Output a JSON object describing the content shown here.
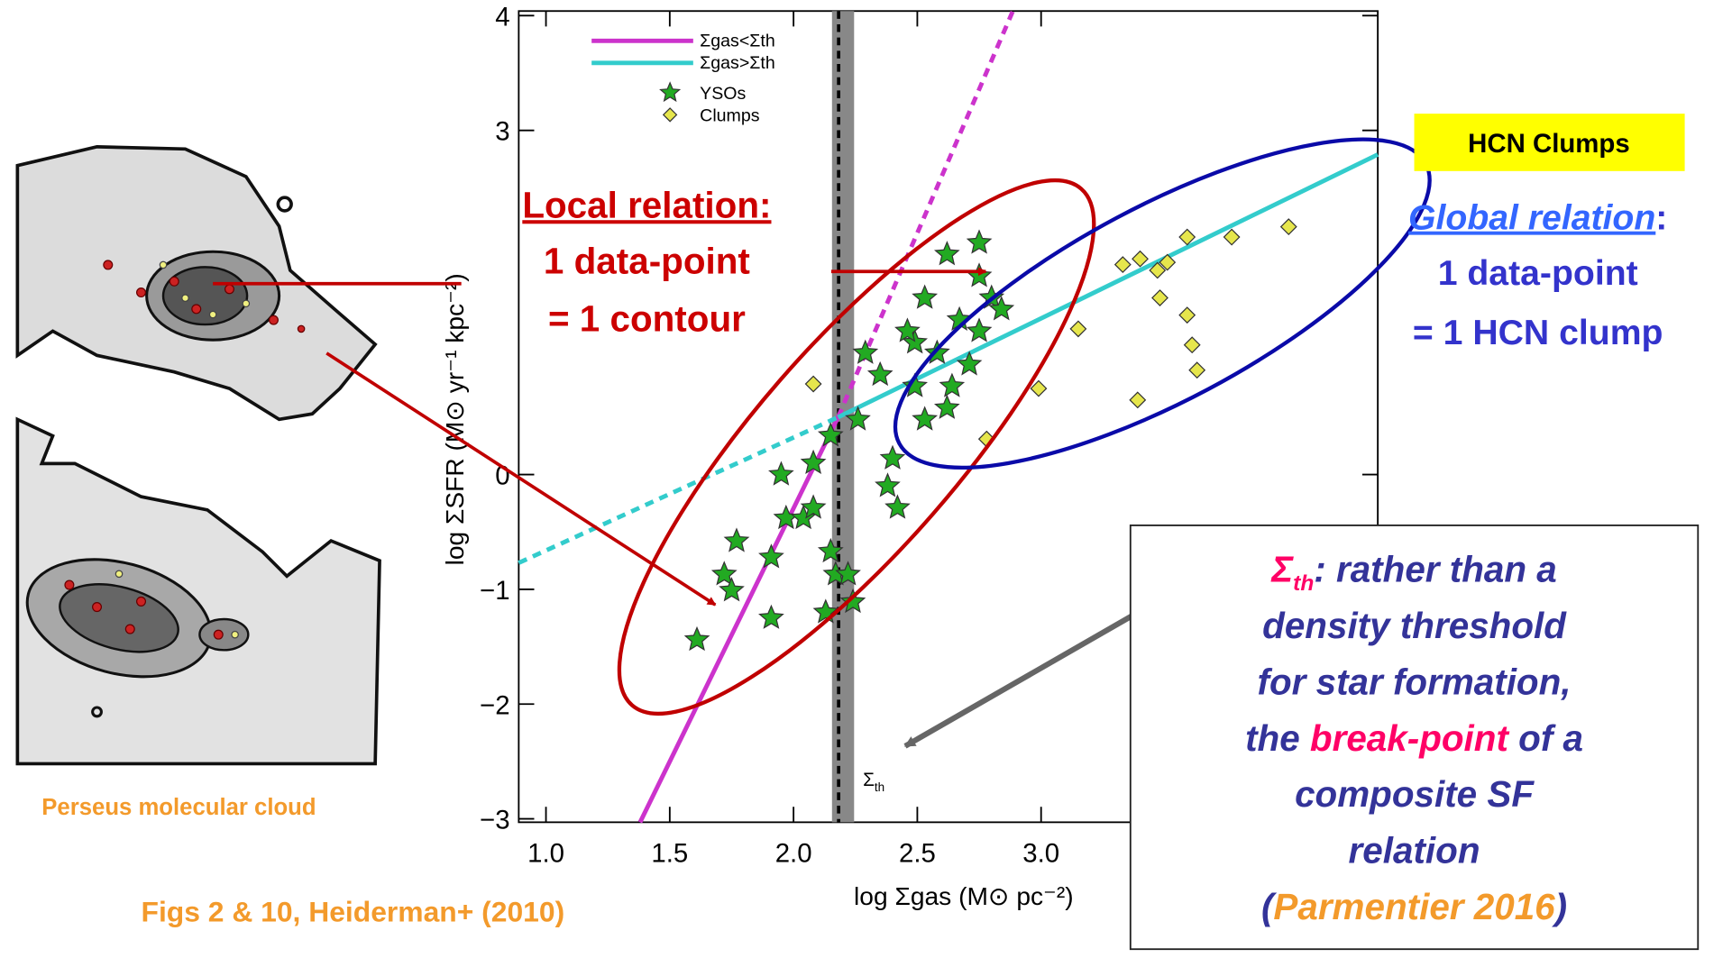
{
  "chart_data": {
    "type": "scatter",
    "x_label": "log Σgas (M⊙ pc⁻²)",
    "y_label": "log ΣSFR (M⊙ yr⁻¹ kpc⁻²)",
    "xlim": [
      0.89,
      4.36
    ],
    "ylim": [
      -3.03,
      4.04
    ],
    "xticks": [
      {
        "value": 1,
        "label": "1.0"
      },
      1.5,
      {
        "value": 2,
        "label": "2.0"
      },
      2.5,
      {
        "value": 3,
        "label": "3.0"
      }
    ],
    "yticks": [
      -3,
      -2,
      -1,
      0,
      3,
      4
    ],
    "threshold": 2.2,
    "threshold_label": {
      "symbol": "Σ",
      "sub": "th"
    },
    "series": [
      {
        "name": "Σgas<Σth",
        "style": "line",
        "color": "#cc33cc",
        "x": [
          1.38,
          2.18
        ],
        "values": [
          -3.03,
          0.5
        ],
        "dashed_x": [
          2.18,
          2.89
        ],
        "dashed_values": [
          0.5,
          4.06
        ]
      },
      {
        "name": "Σgas>Σth",
        "style": "line",
        "color": "#33cccc",
        "x": [
          2.18,
          4.36
        ],
        "values": [
          0.5,
          2.79
        ],
        "dashed_x": [
          0.89,
          2.18
        ],
        "dashed_values": [
          -0.77,
          0.5
        ]
      },
      {
        "name": "YSOs",
        "style": "star",
        "color": "#22aa22",
        "x": [
          1.61,
          1.72,
          1.75,
          1.91,
          1.77,
          1.95,
          1.97,
          2.04,
          2.08,
          2.13,
          2.24,
          2.17,
          2.29,
          2.35,
          2.4,
          2.38,
          2.42,
          2.49,
          2.53,
          2.62,
          2.75,
          2.75,
          2.8,
          2.67,
          2.58,
          2.64,
          2.49,
          2.53,
          2.46,
          2.75,
          2.84,
          2.71,
          2.62,
          2.26,
          2.22,
          2.15,
          2.08,
          2.15,
          1.91
        ],
        "values": [
          -1.44,
          -0.87,
          -1.01,
          -1.25,
          -0.58,
          0,
          -0.38,
          -0.38,
          -0.29,
          -1.2,
          -1.11,
          -0.87,
          1.06,
          0.87,
          0.14,
          -0.1,
          -0.29,
          1.15,
          1.54,
          1.92,
          2.02,
          1.73,
          1.54,
          1.35,
          1.06,
          0.77,
          0.77,
          0.48,
          1.25,
          1.25,
          1.44,
          0.96,
          0.58,
          0.48,
          -0.87,
          -0.67,
          0.1,
          0.34,
          -0.72
        ]
      },
      {
        "name": "Clumps",
        "style": "diamond",
        "color": "#e6e64c",
        "x": [
          2.08,
          2.78,
          2.99,
          3.15,
          3.33,
          3.4,
          3.47,
          3.51,
          3.59,
          3.77,
          4.0,
          3.48,
          3.59,
          3.61,
          3.63,
          3.39
        ],
        "values": [
          0.79,
          0.31,
          0.75,
          1.27,
          1.83,
          1.88,
          1.78,
          1.85,
          2.07,
          2.07,
          2.16,
          1.54,
          1.39,
          1.13,
          0.91,
          0.65
        ]
      }
    ]
  },
  "annotations": {
    "local_title": "Local relation:",
    "local_lines": [
      "1 data-point",
      "= 1 contour"
    ],
    "hcn_box": "HCN Clumps",
    "global_title": "Global relation",
    "global_colon": ":",
    "global_lines": [
      "1 data-point",
      "= 1 HCN clump"
    ],
    "map_caption": "Perseus molecular cloud",
    "source": "Figs 2 & 10, Heiderman+ (2010)"
  },
  "note": {
    "lines": [
      [
        "Σ",
        "th",
        ": rather than a"
      ],
      [
        "density threshold"
      ],
      [
        "for star formation,"
      ],
      [
        "the ",
        "break-point",
        " of a"
      ],
      [
        "composite SF"
      ],
      [
        "relation"
      ],
      [
        "(",
        "Parmentier 2016",
        ")"
      ]
    ]
  }
}
